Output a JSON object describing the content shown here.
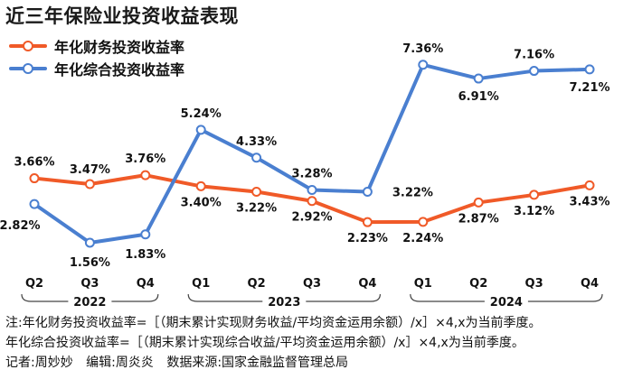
{
  "title": "近三年保险业投资收益表现",
  "chart_data": {
    "type": "line",
    "categories": [
      "Q2",
      "Q3",
      "Q4",
      "Q1",
      "Q2",
      "Q3",
      "Q4",
      "Q1",
      "Q2",
      "Q3",
      "Q4"
    ],
    "groups": [
      {
        "label": "2022",
        "start": 0,
        "end": 2
      },
      {
        "label": "2023",
        "start": 3,
        "end": 6
      },
      {
        "label": "2024",
        "start": 7,
        "end": 10
      }
    ],
    "series": [
      {
        "name": "年化财务投资收益率",
        "color": "#f05a28",
        "values": [
          3.66,
          3.47,
          3.76,
          3.4,
          3.22,
          2.92,
          2.23,
          2.24,
          2.87,
          3.12,
          3.43
        ],
        "labels": [
          "3.66%",
          "3.47%",
          "3.76%",
          "3.40%",
          "3.22%",
          "2.92%",
          "2.23%",
          "2.24%",
          "2.87%",
          "3.12%",
          "3.43%"
        ]
      },
      {
        "name": "年化综合投资收益率",
        "color": "#4a7fd0",
        "values": [
          2.82,
          1.56,
          1.83,
          5.24,
          4.33,
          3.28,
          3.22,
          7.36,
          6.91,
          7.16,
          7.21
        ],
        "labels": [
          "2.82%",
          "1.56%",
          "1.83%",
          "5.24%",
          "4.33%",
          "3.28%",
          "3.22%",
          "7.36%",
          "6.91%",
          "7.16%",
          "7.21%"
        ]
      }
    ],
    "ylim": [
      1.0,
      8.0
    ],
    "grid": false,
    "legend_position": "top-left"
  },
  "notes": {
    "line1": "注:年化财务投资收益率=［（期末累计实现财务收益/平均资金运用余额）/x］×4,x为当前季度。",
    "line2": "年化综合投资收益率=［（期末累计实现综合收益/平均资金运用余额）/x］×4,x为当前季度。"
  },
  "credits": {
    "reporter": "记者:周妙妙",
    "editor": "编辑:周炎炎",
    "source": "数据来源:国家金融监督管理总局"
  }
}
